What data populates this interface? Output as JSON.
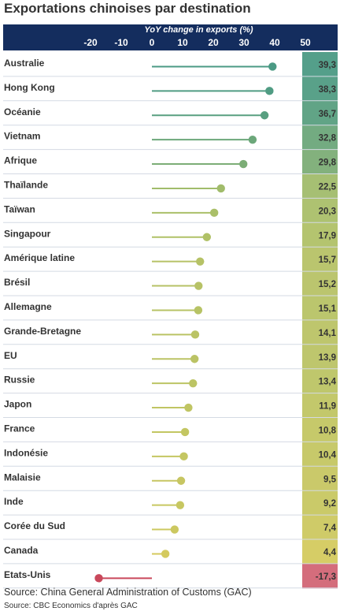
{
  "title": "Exportations chinoises par destination",
  "source_main": "Source: China General Administration of Customs (GAC)",
  "source_sub": "Source: CBC Economics d'après GAC",
  "chart_data": {
    "type": "lollipop",
    "xlabel": "YoY change in exports (%)",
    "xlim": [
      -25,
      55
    ],
    "xticks": [
      -20,
      -10,
      0,
      10,
      20,
      30,
      40,
      50
    ],
    "categories": [
      "Australie",
      "Hong Kong",
      "Océanie",
      "Vietnam",
      "Afrique",
      "Thaïlande",
      "Taïwan",
      "Singapour",
      "Amérique latine",
      "Brésil",
      "Allemagne",
      "Grande-Bretagne",
      "EU",
      "Russie",
      "Japon",
      "France",
      "Indonésie",
      "Malaisie",
      "Inde",
      "Corée du Sud",
      "Canada",
      "Etats-Unis"
    ],
    "values": [
      39.3,
      38.3,
      36.7,
      32.8,
      29.8,
      22.5,
      20.3,
      17.9,
      15.7,
      15.2,
      15.1,
      14.1,
      13.9,
      13.4,
      11.9,
      10.8,
      10.4,
      9.5,
      9.2,
      7.4,
      4.4,
      -17.3
    ],
    "value_labels": [
      "39,3",
      "38,3",
      "36,7",
      "32,8",
      "29,8",
      "22,5",
      "20,3",
      "17,9",
      "15,7",
      "15,2",
      "15,1",
      "14,1",
      "13,9",
      "13,4",
      "11,9",
      "10,8",
      "10,4",
      "9,5",
      "9,2",
      "7,4",
      "4,4",
      "-17,3"
    ],
    "colors": {
      "high": "#4b9a84",
      "mid": "#a6be6a",
      "low": "#e0cd5b",
      "negative": "#c9485b",
      "header": "#142d5e"
    }
  }
}
